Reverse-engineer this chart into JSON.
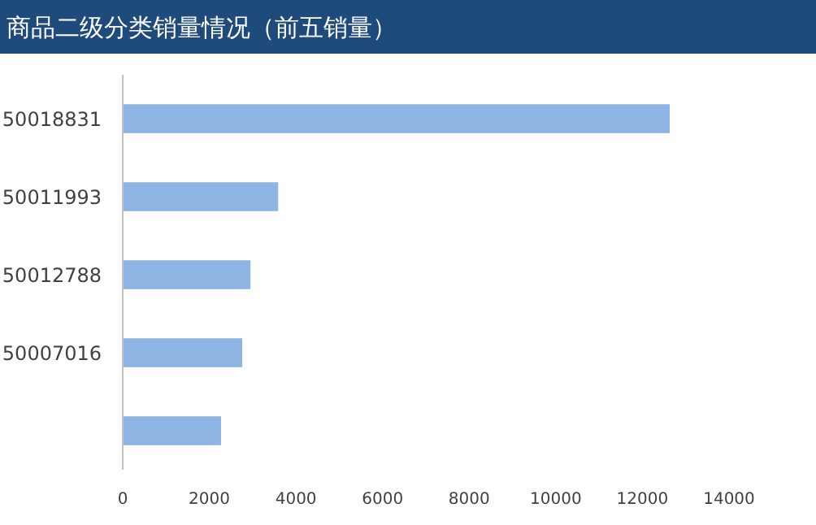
{
  "chart_data": {
    "type": "bar",
    "orientation": "horizontal",
    "title": "商品二级分类销量情况（前五销量）",
    "categories": [
      "50018831",
      "50011993",
      "50012788",
      "50007016",
      null
    ],
    "values": [
      12630,
      3590,
      2950,
      2760,
      2270
    ],
    "color": "#8db4e2",
    "xlim": [
      0,
      14000
    ],
    "xticks": [
      0,
      2000,
      4000,
      6000,
      8000,
      10000,
      12000,
      14000
    ]
  }
}
